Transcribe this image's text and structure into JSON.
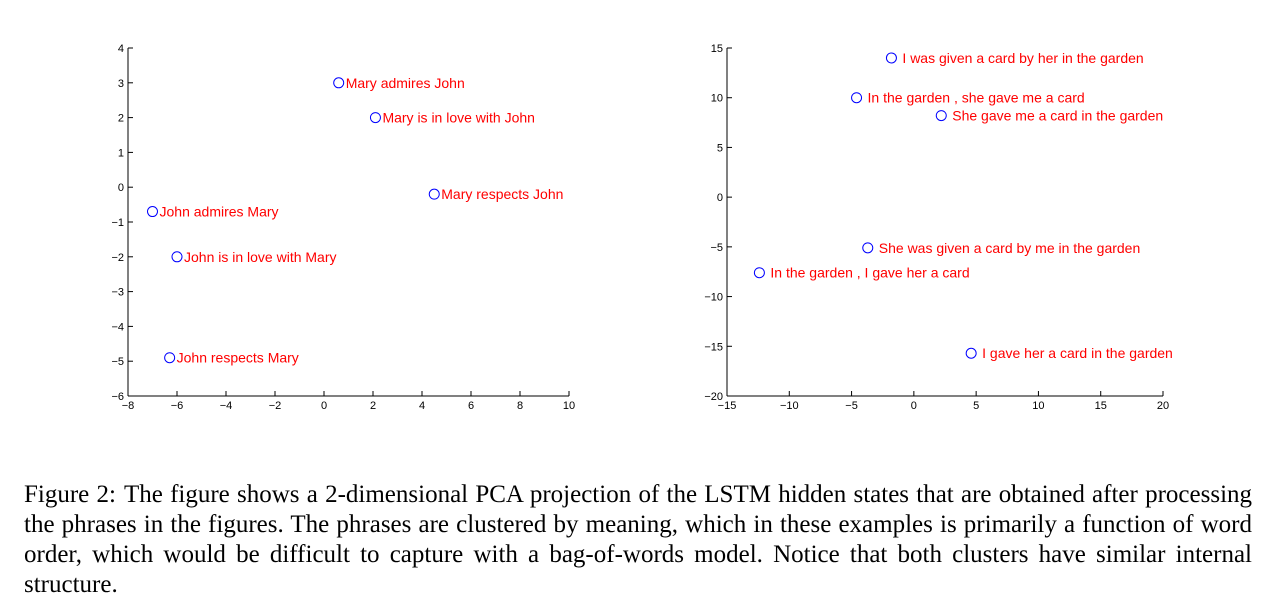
{
  "chart_data": [
    {
      "type": "scatter",
      "xlim": [
        -8,
        10
      ],
      "ylim": [
        -6,
        4
      ],
      "xticks": [
        -8,
        -6,
        -4,
        -2,
        0,
        2,
        4,
        6,
        8,
        10
      ],
      "yticks": [
        -6,
        -5,
        -4,
        -3,
        -2,
        -1,
        0,
        1,
        2,
        3,
        4
      ],
      "xtick_labels": [
        "−8",
        "−6",
        "−4",
        "−2",
        "0",
        "2",
        "4",
        "6",
        "8",
        "10"
      ],
      "ytick_labels": [
        "−6",
        "−5",
        "−4",
        "−3",
        "−2",
        "−1",
        "0",
        "1",
        "2",
        "3",
        "4"
      ],
      "marker_color": "#0000ff",
      "label_color": "#ff0000",
      "points": [
        {
          "x": 0.6,
          "y": 3.0,
          "label": "Mary admires John"
        },
        {
          "x": 2.1,
          "y": 2.0,
          "label": "Mary is in love with John"
        },
        {
          "x": 4.5,
          "y": -0.2,
          "label": "Mary respects John"
        },
        {
          "x": -7.0,
          "y": -0.7,
          "label": "John admires Mary"
        },
        {
          "x": -6.0,
          "y": -2.0,
          "label": "John is in love with Mary"
        },
        {
          "x": -6.3,
          "y": -4.9,
          "label": "John respects Mary"
        }
      ]
    },
    {
      "type": "scatter",
      "xlim": [
        -15,
        20
      ],
      "ylim": [
        -20,
        15
      ],
      "xticks": [
        -15,
        -10,
        -5,
        0,
        5,
        10,
        15,
        20
      ],
      "yticks": [
        -20,
        -15,
        -10,
        -5,
        0,
        5,
        10,
        15
      ],
      "xtick_labels": [
        "−15",
        "−10",
        "−5",
        "0",
        "5",
        "10",
        "15",
        "20"
      ],
      "ytick_labels": [
        "−20",
        "−15",
        "−10",
        "−5",
        "0",
        "5",
        "10",
        "15"
      ],
      "marker_color": "#0000ff",
      "label_color": "#ff0000",
      "points": [
        {
          "x": -1.8,
          "y": 14.0,
          "label": "I was given a card by her in the garden"
        },
        {
          "x": -4.6,
          "y": 10.0,
          "label": "In the garden , she gave me a card"
        },
        {
          "x": 2.2,
          "y": 8.2,
          "label": "She gave me a card in the garden"
        },
        {
          "x": -3.7,
          "y": -5.1,
          "label": "She was given a card by me in the garden"
        },
        {
          "x": -12.4,
          "y": -7.6,
          "label": "In the garden , I gave her a card"
        },
        {
          "x": 4.6,
          "y": -15.7,
          "label": "I gave her a card in the garden"
        }
      ]
    }
  ],
  "caption": {
    "figure_label": "Figure 2:",
    "text": "The figure shows a 2-dimensional PCA projection of the LSTM hidden states that are obtained after processing the phrases in the figures. The phrases are clustered by meaning, which in these examples is primarily a function of word order, which would be difficult to capture with a bag-of-words model. Notice that both clusters have similar internal structure."
  }
}
